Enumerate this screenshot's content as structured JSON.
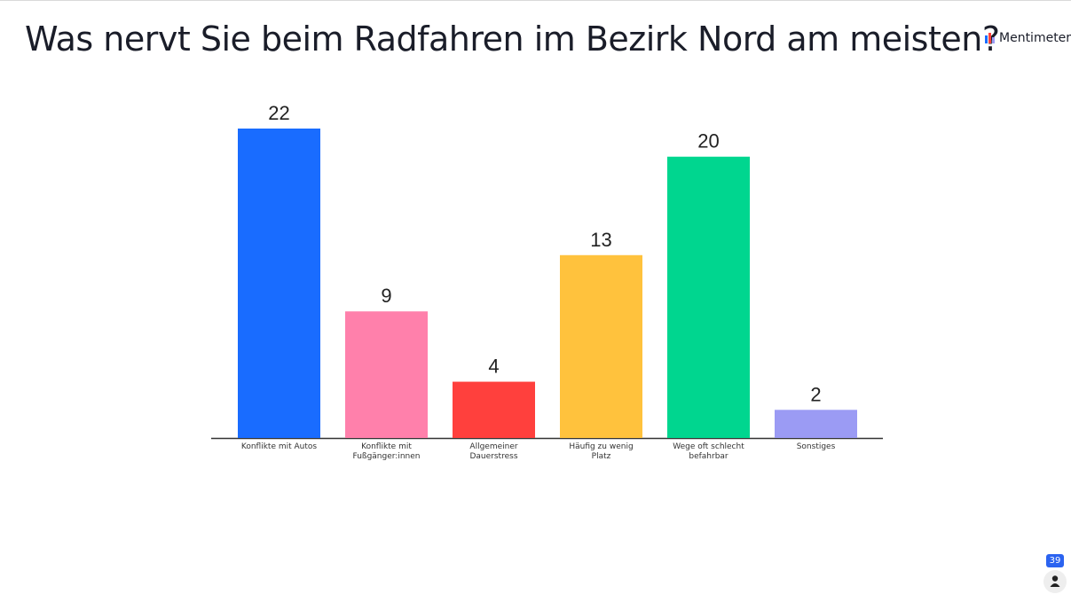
{
  "chart_data": {
    "type": "bar",
    "title": "Was nervt Sie beim Radfahren im Bezirk Nord am meisten?",
    "categories": [
      "Konflikte mit Autos",
      "Konflikte mit\nFußgänger:innen",
      "Allgemeiner\nDauerstress",
      "Häufig zu wenig\nPlatz",
      "Wege oft schlecht\nbefahrbar",
      "Sonstiges"
    ],
    "values": [
      22,
      9,
      4,
      13,
      20,
      2
    ],
    "colors": [
      "#196cff",
      "#ff80ab",
      "#ff403d",
      "#ffc23d",
      "#00d68f",
      "#9b9bf4"
    ]
  },
  "brand": "Mentimeter",
  "participants": 39
}
